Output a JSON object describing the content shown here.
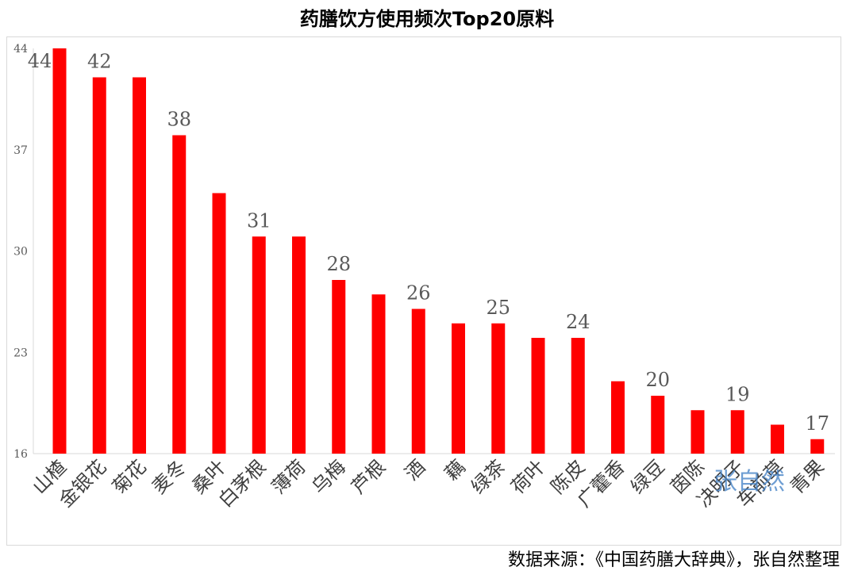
{
  "chart_data": {
    "type": "bar",
    "title": "药膳饮方使用频次Top20原料",
    "categories": [
      "山楂",
      "金银花",
      "菊花",
      "麦冬",
      "桑叶",
      "白茅根",
      "薄荷",
      "乌梅",
      "芦根",
      "酒",
      "藕",
      "绿茶",
      "荷叶",
      "陈皮",
      "广藿香",
      "绿豆",
      "茵陈",
      "决明子",
      "车前草",
      "青果"
    ],
    "values": [
      44,
      42,
      42,
      38,
      34,
      31,
      31,
      28,
      27,
      26,
      25,
      25,
      24,
      24,
      21,
      20,
      19,
      19,
      18,
      17
    ],
    "data_labels": [
      {
        "index": 0,
        "text": "44"
      },
      {
        "index": 1,
        "text": "42"
      },
      {
        "index": 3,
        "text": "38"
      },
      {
        "index": 5,
        "text": "31"
      },
      {
        "index": 7,
        "text": "28"
      },
      {
        "index": 9,
        "text": "26"
      },
      {
        "index": 11,
        "text": "25"
      },
      {
        "index": 13,
        "text": "24"
      },
      {
        "index": 15,
        "text": "20"
      },
      {
        "index": 17,
        "text": "19"
      },
      {
        "index": 19,
        "text": "17"
      }
    ],
    "y_ticks": [
      "16",
      "23",
      "30",
      "37",
      "44"
    ],
    "ylim": [
      16,
      44
    ],
    "xlabel": "",
    "ylabel": "",
    "grid": false,
    "bar_color": "#ff0000",
    "watermark": "张自然"
  },
  "source_note": "数据来源：《中国药膳大辞典》，张自然整理"
}
